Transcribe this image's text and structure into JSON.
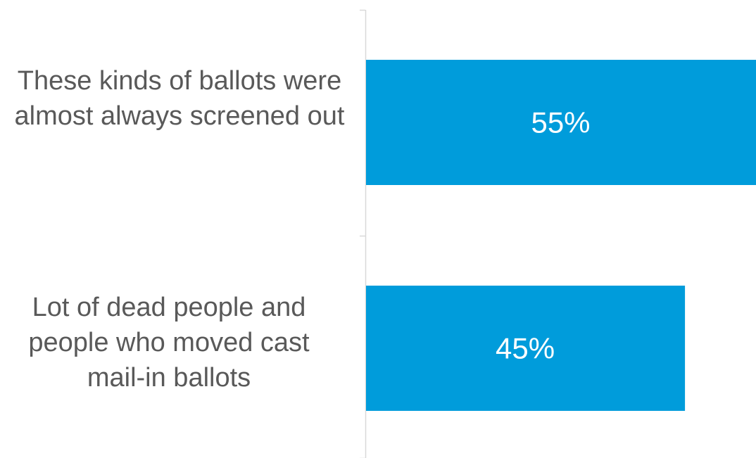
{
  "chart_data": {
    "type": "bar",
    "orientation": "horizontal",
    "title": "",
    "xlabel": "",
    "ylabel": "",
    "categories": [
      "These kinds of ballots were almost always screened out",
      "Lot of dead people and people who moved cast mail-in ballots"
    ],
    "values": [
      55,
      45
    ],
    "value_labels": [
      "55%",
      "45%"
    ],
    "xlim": [
      0,
      55
    ],
    "grid": false,
    "legend": "none",
    "colors": {
      "bar": "#009cdb",
      "bar_label": "#ffffff",
      "category_label": "#595959",
      "axis_line": "#d9d9d9"
    }
  }
}
